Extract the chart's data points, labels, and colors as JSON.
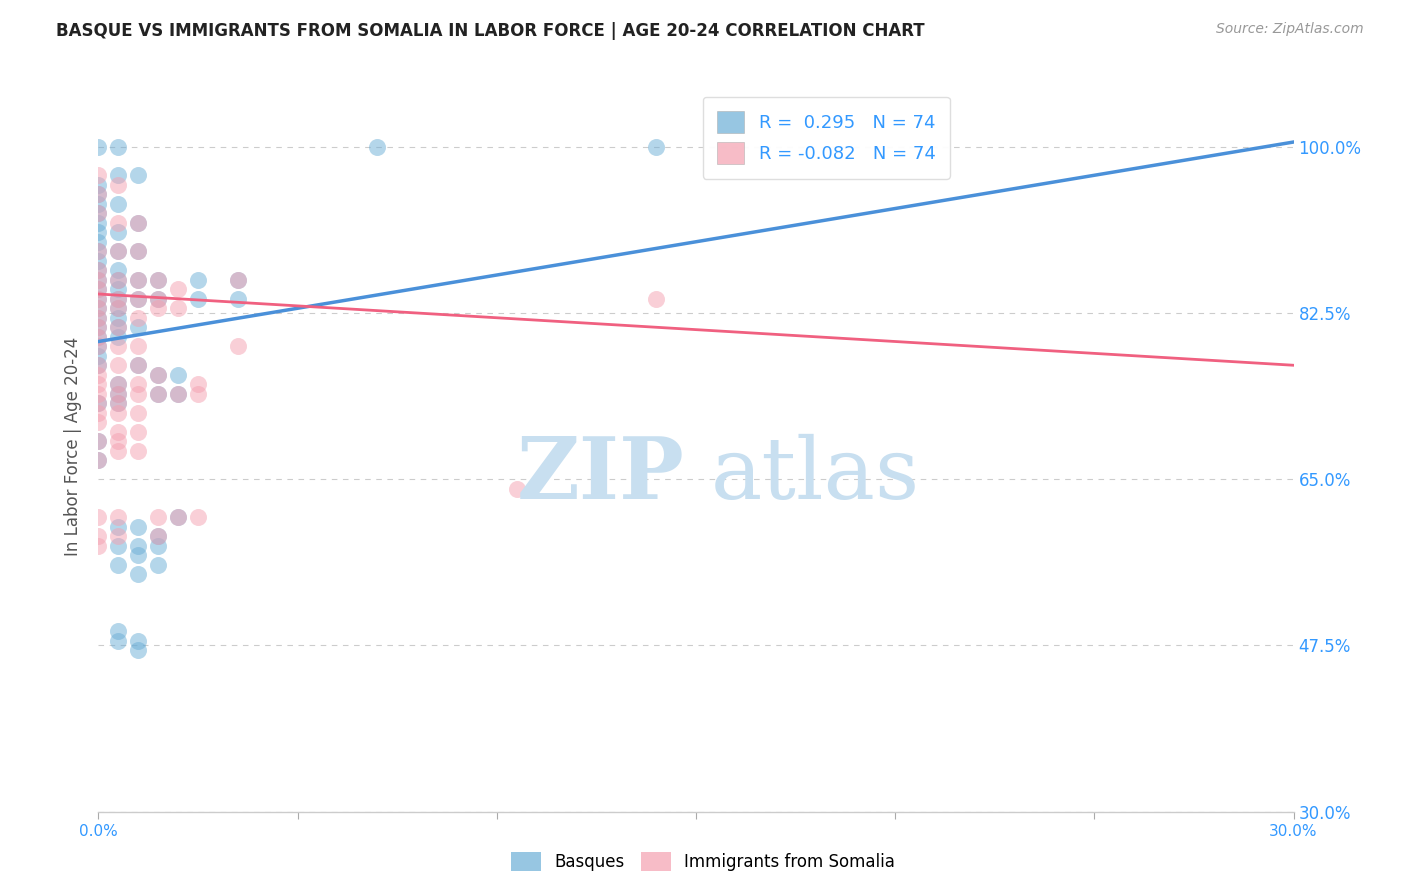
{
  "title": "BASQUE VS IMMIGRANTS FROM SOMALIA IN LABOR FORCE | AGE 20-24 CORRELATION CHART",
  "source": "Source: ZipAtlas.com",
  "ylabel_label": "In Labor Force | Age 20-24",
  "legend_labels": [
    "Basques",
    "Immigrants from Somalia"
  ],
  "blue_color": "#6baed6",
  "pink_color": "#f4a0b0",
  "blue_line_color": "#4a90d9",
  "pink_line_color": "#f06080",
  "watermark_zip_color": "#c8dff0",
  "watermark_atlas_color": "#c8dff0",
  "blue_scatter": [
    [
      0.0,
      1.0
    ],
    [
      0.0,
      0.96
    ],
    [
      0.0,
      0.95
    ],
    [
      0.0,
      0.94
    ],
    [
      0.0,
      0.93
    ],
    [
      0.0,
      0.92
    ],
    [
      0.0,
      0.91
    ],
    [
      0.0,
      0.9
    ],
    [
      0.0,
      0.89
    ],
    [
      0.0,
      0.88
    ],
    [
      0.0,
      0.87
    ],
    [
      0.0,
      0.86
    ],
    [
      0.0,
      0.85
    ],
    [
      0.0,
      0.84
    ],
    [
      0.0,
      0.83
    ],
    [
      0.0,
      0.82
    ],
    [
      0.0,
      0.81
    ],
    [
      0.0,
      0.8
    ],
    [
      0.0,
      0.79
    ],
    [
      0.0,
      0.78
    ],
    [
      0.0,
      0.77
    ],
    [
      0.0,
      0.73
    ],
    [
      0.0,
      0.69
    ],
    [
      0.0,
      0.67
    ],
    [
      0.005,
      1.0
    ],
    [
      0.005,
      0.97
    ],
    [
      0.005,
      0.94
    ],
    [
      0.005,
      0.91
    ],
    [
      0.005,
      0.89
    ],
    [
      0.005,
      0.87
    ],
    [
      0.005,
      0.86
    ],
    [
      0.005,
      0.85
    ],
    [
      0.005,
      0.84
    ],
    [
      0.005,
      0.83
    ],
    [
      0.005,
      0.82
    ],
    [
      0.005,
      0.81
    ],
    [
      0.005,
      0.8
    ],
    [
      0.005,
      0.75
    ],
    [
      0.005,
      0.74
    ],
    [
      0.005,
      0.73
    ],
    [
      0.005,
      0.6
    ],
    [
      0.005,
      0.58
    ],
    [
      0.005,
      0.56
    ],
    [
      0.005,
      0.49
    ],
    [
      0.005,
      0.48
    ],
    [
      0.01,
      0.97
    ],
    [
      0.01,
      0.92
    ],
    [
      0.01,
      0.89
    ],
    [
      0.01,
      0.86
    ],
    [
      0.01,
      0.84
    ],
    [
      0.01,
      0.81
    ],
    [
      0.01,
      0.77
    ],
    [
      0.01,
      0.6
    ],
    [
      0.01,
      0.58
    ],
    [
      0.01,
      0.57
    ],
    [
      0.01,
      0.55
    ],
    [
      0.01,
      0.48
    ],
    [
      0.01,
      0.47
    ],
    [
      0.015,
      0.86
    ],
    [
      0.015,
      0.84
    ],
    [
      0.015,
      0.76
    ],
    [
      0.015,
      0.74
    ],
    [
      0.015,
      0.59
    ],
    [
      0.015,
      0.58
    ],
    [
      0.015,
      0.56
    ],
    [
      0.02,
      0.76
    ],
    [
      0.02,
      0.74
    ],
    [
      0.02,
      0.61
    ],
    [
      0.025,
      0.86
    ],
    [
      0.025,
      0.84
    ],
    [
      0.035,
      0.86
    ],
    [
      0.035,
      0.84
    ],
    [
      0.07,
      1.0
    ],
    [
      0.14,
      1.0
    ]
  ],
  "pink_scatter": [
    [
      0.0,
      0.97
    ],
    [
      0.0,
      0.95
    ],
    [
      0.0,
      0.93
    ],
    [
      0.0,
      0.89
    ],
    [
      0.0,
      0.87
    ],
    [
      0.0,
      0.86
    ],
    [
      0.0,
      0.85
    ],
    [
      0.0,
      0.84
    ],
    [
      0.0,
      0.83
    ],
    [
      0.0,
      0.82
    ],
    [
      0.0,
      0.81
    ],
    [
      0.0,
      0.8
    ],
    [
      0.0,
      0.79
    ],
    [
      0.0,
      0.77
    ],
    [
      0.0,
      0.76
    ],
    [
      0.0,
      0.75
    ],
    [
      0.0,
      0.74
    ],
    [
      0.0,
      0.73
    ],
    [
      0.0,
      0.72
    ],
    [
      0.0,
      0.71
    ],
    [
      0.0,
      0.69
    ],
    [
      0.0,
      0.67
    ],
    [
      0.0,
      0.61
    ],
    [
      0.0,
      0.59
    ],
    [
      0.0,
      0.58
    ],
    [
      0.005,
      0.96
    ],
    [
      0.005,
      0.92
    ],
    [
      0.005,
      0.89
    ],
    [
      0.005,
      0.86
    ],
    [
      0.005,
      0.84
    ],
    [
      0.005,
      0.83
    ],
    [
      0.005,
      0.81
    ],
    [
      0.005,
      0.79
    ],
    [
      0.005,
      0.77
    ],
    [
      0.005,
      0.75
    ],
    [
      0.005,
      0.74
    ],
    [
      0.005,
      0.73
    ],
    [
      0.005,
      0.72
    ],
    [
      0.005,
      0.7
    ],
    [
      0.005,
      0.69
    ],
    [
      0.005,
      0.68
    ],
    [
      0.005,
      0.61
    ],
    [
      0.005,
      0.59
    ],
    [
      0.01,
      0.92
    ],
    [
      0.01,
      0.89
    ],
    [
      0.01,
      0.86
    ],
    [
      0.01,
      0.84
    ],
    [
      0.01,
      0.82
    ],
    [
      0.01,
      0.79
    ],
    [
      0.01,
      0.77
    ],
    [
      0.01,
      0.75
    ],
    [
      0.01,
      0.74
    ],
    [
      0.01,
      0.72
    ],
    [
      0.01,
      0.7
    ],
    [
      0.01,
      0.68
    ],
    [
      0.015,
      0.86
    ],
    [
      0.015,
      0.84
    ],
    [
      0.015,
      0.83
    ],
    [
      0.015,
      0.76
    ],
    [
      0.015,
      0.74
    ],
    [
      0.015,
      0.61
    ],
    [
      0.015,
      0.59
    ],
    [
      0.02,
      0.85
    ],
    [
      0.02,
      0.83
    ],
    [
      0.02,
      0.74
    ],
    [
      0.02,
      0.61
    ],
    [
      0.025,
      0.75
    ],
    [
      0.025,
      0.74
    ],
    [
      0.025,
      0.61
    ],
    [
      0.035,
      0.86
    ],
    [
      0.035,
      0.79
    ],
    [
      0.105,
      0.64
    ],
    [
      0.14,
      0.84
    ]
  ],
  "blue_line": [
    [
      0.0,
      0.795
    ],
    [
      0.3,
      1.005
    ]
  ],
  "pink_line": [
    [
      0.0,
      0.845
    ],
    [
      0.3,
      0.77
    ]
  ],
  "xlim": [
    0.0,
    0.3
  ],
  "ylim": [
    0.3,
    1.07
  ],
  "y_tick_vals": [
    0.3,
    0.475,
    0.65,
    0.825,
    1.0
  ],
  "y_tick_labels": [
    "30.0%",
    "47.5%",
    "65.0%",
    "82.5%",
    "100.0%"
  ],
  "x_tick_vals": [
    0.0,
    0.05,
    0.1,
    0.15,
    0.2,
    0.25,
    0.3
  ],
  "x_tick_labels_bottom": [
    "0.0%",
    "",
    "",
    "",
    "",
    "",
    "30.0%"
  ],
  "axis_color": "#3399ff",
  "grid_color": "#cccccc",
  "bg_color": "#ffffff",
  "title_fontsize": 12,
  "source_fontsize": 10
}
